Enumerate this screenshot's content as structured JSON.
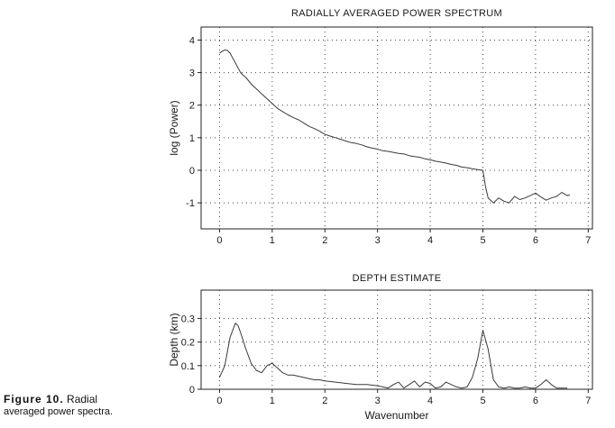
{
  "figure_caption": {
    "label": "Figure 10.",
    "line1_rest": "Radial",
    "line2": "averaged power spectra."
  },
  "chart_data": [
    {
      "type": "line",
      "title": "RADIALLY AVERAGED POWER SPECTRUM",
      "xlabel": "",
      "ylabel": "log (Power)",
      "xlim": [
        -0.35,
        7.08
      ],
      "ylim": [
        -1.8,
        4.4
      ],
      "xticks": [
        0,
        1,
        2,
        3,
        4,
        5,
        6,
        7
      ],
      "yticks": [
        -1,
        0,
        1,
        2,
        3,
        4
      ],
      "grid": "dotted",
      "legend": "none",
      "x": [
        0.0,
        0.05,
        0.1,
        0.15,
        0.2,
        0.25,
        0.3,
        0.35,
        0.4,
        0.45,
        0.5,
        0.6,
        0.7,
        0.8,
        0.9,
        1.0,
        1.1,
        1.2,
        1.3,
        1.4,
        1.5,
        1.6,
        1.7,
        1.8,
        1.9,
        2.0,
        2.1,
        2.2,
        2.3,
        2.4,
        2.5,
        2.6,
        2.7,
        2.8,
        2.9,
        3.0,
        3.1,
        3.2,
        3.3,
        3.4,
        3.5,
        3.6,
        3.7,
        3.8,
        3.9,
        4.0,
        4.1,
        4.2,
        4.3,
        4.4,
        4.5,
        4.6,
        4.7,
        4.8,
        4.9,
        5.0,
        5.05,
        5.1,
        5.2,
        5.3,
        5.4,
        5.5,
        5.6,
        5.7,
        5.8,
        5.9,
        6.0,
        6.1,
        6.2,
        6.3,
        6.4,
        6.5,
        6.6,
        6.65
      ],
      "y": [
        3.6,
        3.65,
        3.7,
        3.68,
        3.6,
        3.45,
        3.3,
        3.15,
        3.0,
        2.92,
        2.85,
        2.65,
        2.5,
        2.35,
        2.2,
        2.05,
        1.9,
        1.8,
        1.7,
        1.62,
        1.55,
        1.45,
        1.35,
        1.28,
        1.2,
        1.1,
        1.05,
        1.0,
        0.95,
        0.9,
        0.85,
        0.82,
        0.78,
        0.72,
        0.68,
        0.65,
        0.6,
        0.58,
        0.55,
        0.52,
        0.5,
        0.45,
        0.42,
        0.4,
        0.35,
        0.32,
        0.28,
        0.25,
        0.22,
        0.18,
        0.15,
        0.1,
        0.08,
        0.05,
        0.02,
        0.0,
        -0.5,
        -0.85,
        -1.0,
        -0.85,
        -0.95,
        -1.0,
        -0.8,
        -0.9,
        -0.85,
        -0.78,
        -0.7,
        -0.82,
        -0.92,
        -0.85,
        -0.8,
        -0.68,
        -0.78,
        -0.75
      ]
    },
    {
      "type": "line",
      "title": "DEPTH ESTIMATE",
      "xlabel": "Wavenumber",
      "ylabel": "Depth (km)",
      "xlim": [
        -0.35,
        7.08
      ],
      "ylim": [
        0,
        0.42
      ],
      "xticks": [
        0,
        1,
        2,
        3,
        4,
        5,
        6,
        7
      ],
      "yticks": [
        0,
        0.1,
        0.2,
        0.3
      ],
      "ytick_labels": [
        "0",
        "0.1",
        "0.2",
        "0.3"
      ],
      "grid": "dotted",
      "legend": "none",
      "x": [
        0.0,
        0.1,
        0.2,
        0.3,
        0.35,
        0.4,
        0.5,
        0.6,
        0.7,
        0.8,
        0.9,
        1.0,
        1.1,
        1.2,
        1.3,
        1.4,
        1.5,
        1.6,
        1.7,
        1.8,
        1.9,
        2.0,
        2.2,
        2.4,
        2.6,
        2.8,
        3.0,
        3.1,
        3.2,
        3.3,
        3.4,
        3.5,
        3.6,
        3.7,
        3.8,
        3.9,
        4.0,
        4.1,
        4.2,
        4.3,
        4.4,
        4.5,
        4.6,
        4.7,
        4.8,
        4.9,
        5.0,
        5.1,
        5.2,
        5.3,
        5.4,
        5.5,
        5.6,
        5.7,
        5.8,
        5.9,
        6.0,
        6.1,
        6.2,
        6.3,
        6.4,
        6.5,
        6.6
      ],
      "y": [
        0.05,
        0.1,
        0.22,
        0.28,
        0.27,
        0.24,
        0.17,
        0.11,
        0.08,
        0.07,
        0.1,
        0.11,
        0.09,
        0.07,
        0.06,
        0.06,
        0.055,
        0.05,
        0.045,
        0.04,
        0.04,
        0.035,
        0.03,
        0.025,
        0.02,
        0.02,
        0.015,
        0.01,
        0.005,
        0.02,
        0.03,
        0.005,
        0.02,
        0.035,
        0.01,
        0.03,
        0.025,
        0.005,
        0.01,
        0.03,
        0.02,
        0.01,
        0.005,
        0.01,
        0.05,
        0.13,
        0.25,
        0.17,
        0.04,
        0.01,
        0.005,
        0.01,
        0.005,
        0.005,
        0.01,
        0.005,
        0.005,
        0.02,
        0.04,
        0.02,
        0.005,
        0.005,
        0.005
      ]
    }
  ]
}
